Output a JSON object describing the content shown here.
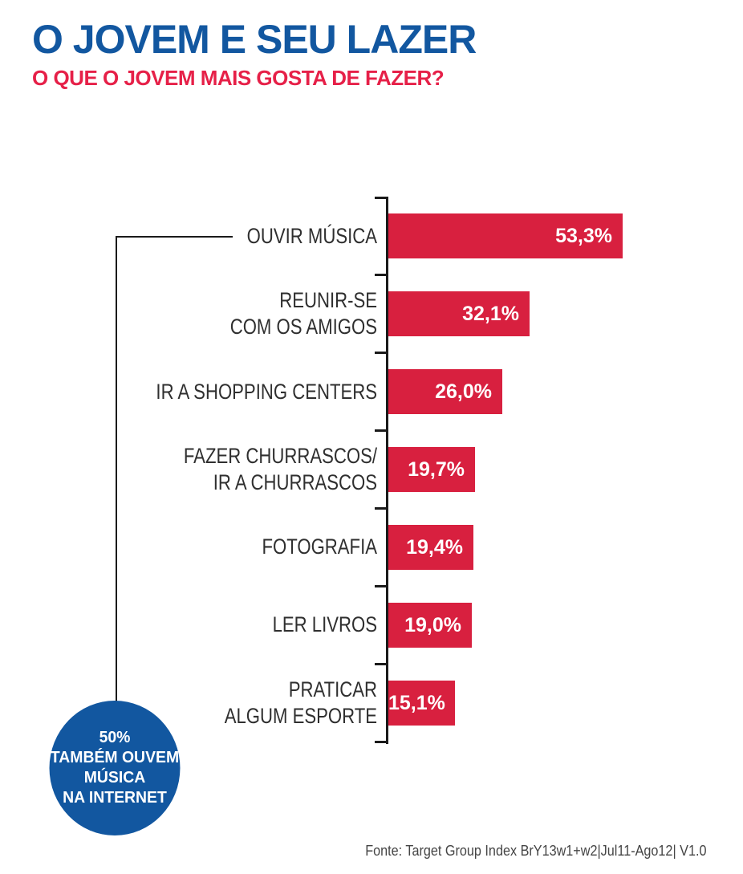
{
  "header": {
    "title": "O JOVEM E SEU LAZER",
    "subtitle": "O QUE O JOVEM MAIS GOSTA DE FAZER?"
  },
  "chart_data": {
    "type": "bar",
    "orientation": "horizontal",
    "title": "O QUE O JOVEM MAIS GOSTA DE FAZER?",
    "categories": [
      "OUVIR MÚSICA",
      "REUNIR-SE\nCOM OS AMIGOS",
      "IR A SHOPPING CENTERS",
      "FAZER CHURRASCOS/\nIR A CHURRASCOS",
      "FOTOGRAFIA",
      "LER LIVROS",
      "PRATICAR\nALGUM ESPORTE"
    ],
    "values": [
      53.3,
      32.1,
      26.0,
      19.7,
      19.4,
      19.0,
      15.1
    ],
    "value_labels": [
      "53,3%",
      "32,1%",
      "26,0%",
      "19,7%",
      "19,4%",
      "19,0%",
      "15,1%"
    ],
    "unit": "%",
    "xlim": [
      0,
      55
    ],
    "grid": false,
    "legend": false,
    "bar_color": "#d8203f"
  },
  "annotation": {
    "text_lines": [
      "50%",
      "TAMBÉM OUVEM",
      "MÚSICA",
      "NA INTERNET"
    ],
    "connects_to": "OUVIR MÚSICA",
    "circle_color": "#1257a0"
  },
  "footer": {
    "source": "Fonte: Target Group Index BrY13w1+w2|Jul11-Ago12| V1.0"
  },
  "colors": {
    "title_blue": "#1257a0",
    "subtitle_red": "#e62048",
    "bar_red": "#d8203f",
    "axis_black": "#1a1a1a"
  }
}
